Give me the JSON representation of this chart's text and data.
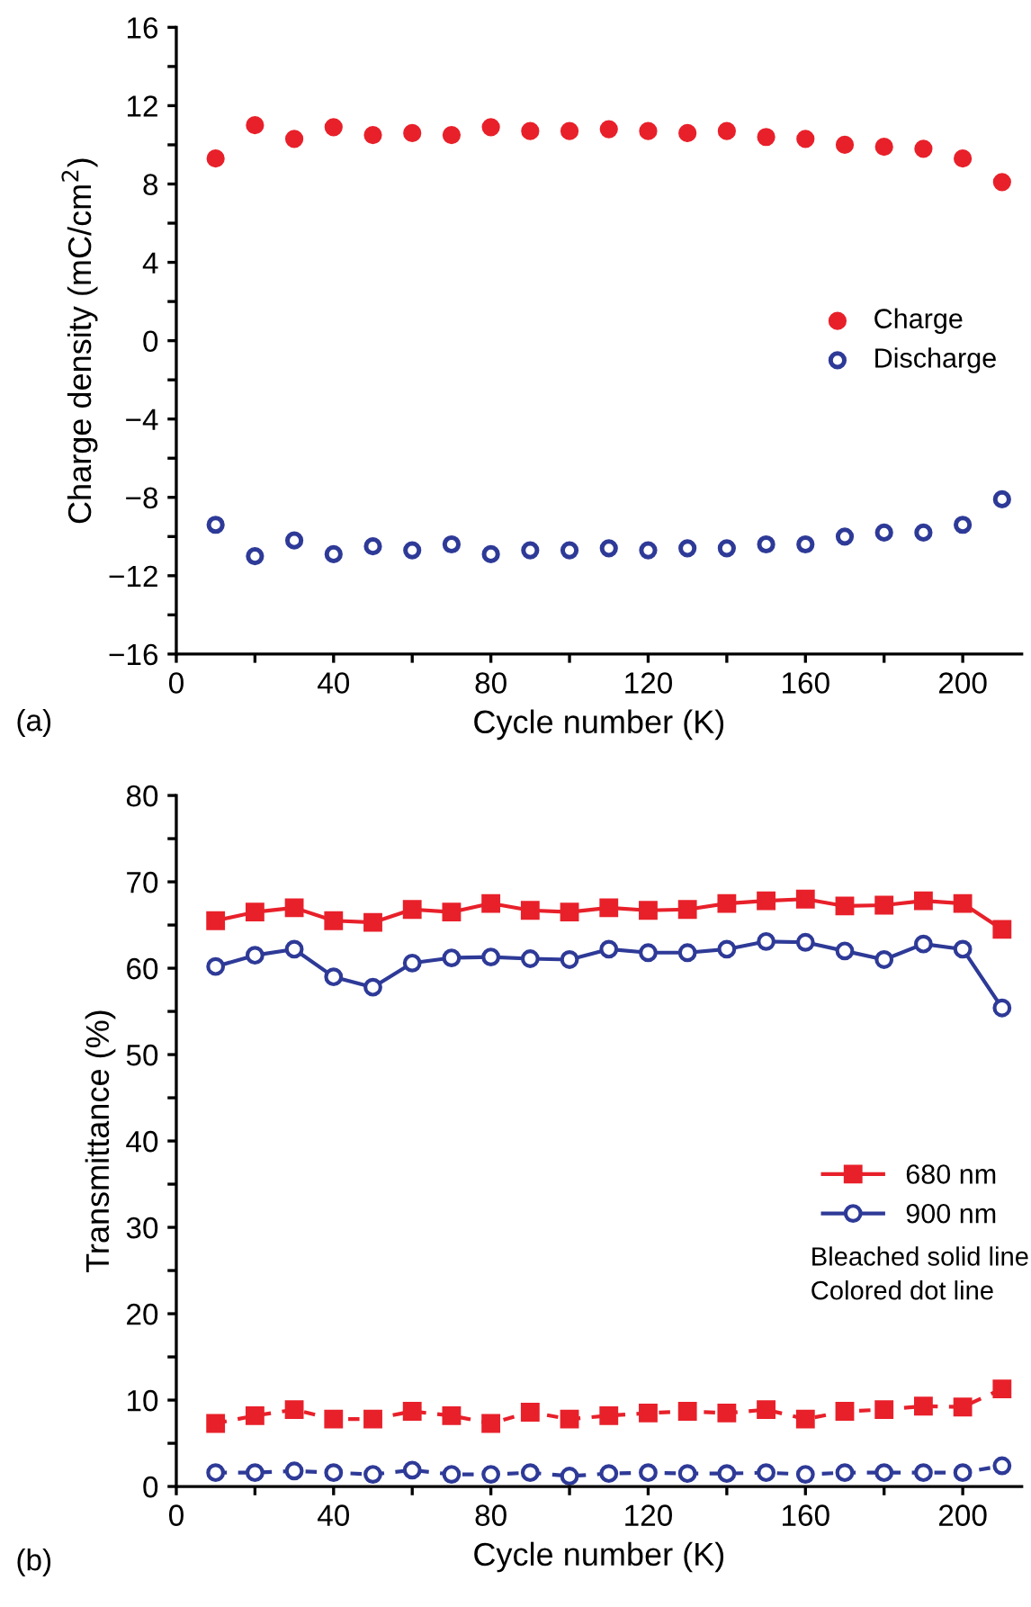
{
  "chart_data": [
    {
      "type": "scatter",
      "xlabel": "Cycle number (K)",
      "ylabel": "Charge density (mC/cm$^{2}$)",
      "annotations": [
        "(a)"
      ],
      "legend": "right",
      "marker": "circle",
      "grid": false,
      "x": [
        10,
        20,
        30,
        40,
        50,
        60,
        70,
        80,
        90,
        100,
        110,
        120,
        130,
        140,
        150,
        160,
        170,
        180,
        190,
        200,
        210
      ],
      "xlim": [
        0,
        215
      ],
      "xticks": [
        0,
        {
          "value": 20,
          "label": null
        },
        40,
        {
          "value": 60,
          "label": null
        },
        80,
        {
          "value": 100,
          "label": null
        },
        120,
        {
          "value": 140,
          "label": null
        },
        160,
        {
          "value": 180,
          "label": null
        },
        200
      ],
      "ylim": [
        -16,
        16
      ],
      "yticks": [
        {
          "value": -16,
          "label": "−16"
        },
        {
          "value": -14,
          "label": null
        },
        {
          "value": -12,
          "label": "−12"
        },
        {
          "value": -10,
          "label": null
        },
        {
          "value": -8,
          "label": "−8"
        },
        {
          "value": -6,
          "label": null
        },
        {
          "value": -4,
          "label": "−4"
        },
        {
          "value": -2,
          "label": null
        },
        0,
        {
          "value": 2,
          "label": null
        },
        4,
        {
          "value": 6,
          "label": null
        },
        8,
        {
          "value": 10,
          "label": null
        },
        12,
        {
          "value": 14,
          "label": null
        },
        16
      ],
      "series": [
        {
          "name": "Charge",
          "color": "#e8202a",
          "values": [
            9.3,
            11.0,
            10.3,
            10.9,
            10.5,
            10.6,
            10.5,
            10.9,
            10.7,
            10.7,
            10.8,
            10.7,
            10.6,
            10.7,
            10.4,
            10.3,
            10.0,
            9.9,
            9.8,
            9.3,
            8.1
          ]
        },
        {
          "name": "Discharge",
          "color": "#2e3a97",
          "values": [
            -9.4,
            -11.0,
            -10.2,
            -10.9,
            -10.5,
            -10.7,
            -10.4,
            -10.9,
            -10.7,
            -10.7,
            -10.6,
            -10.7,
            -10.6,
            -10.6,
            -10.4,
            -10.4,
            -10.0,
            -9.8,
            -9.8,
            -9.4,
            -8.1
          ]
        }
      ]
    },
    {
      "type": "line",
      "xlabel": "Cycle number (K)",
      "ylabel": "Transmittance (%)",
      "annotations": [
        "(b)",
        "Bleached solid line\nColored dot line"
      ],
      "legend": "right",
      "grid": false,
      "x": [
        10,
        20,
        30,
        40,
        50,
        60,
        70,
        80,
        90,
        100,
        110,
        120,
        130,
        140,
        150,
        160,
        170,
        180,
        190,
        200,
        210
      ],
      "xlim": [
        0,
        215
      ],
      "xticks": [
        0,
        {
          "value": 20,
          "label": null
        },
        40,
        {
          "value": 60,
          "label": null
        },
        80,
        {
          "value": 100,
          "label": null
        },
        120,
        {
          "value": 140,
          "label": null
        },
        160,
        {
          "value": 180,
          "label": null
        },
        200
      ],
      "ylim": [
        0,
        80
      ],
      "yticks": [
        0,
        {
          "value": 5,
          "label": null
        },
        10,
        {
          "value": 15,
          "label": null
        },
        20,
        {
          "value": 25,
          "label": null
        },
        30,
        {
          "value": 35,
          "label": null
        },
        40,
        {
          "value": 45,
          "label": null
        },
        50,
        {
          "value": 55,
          "label": null
        },
        60,
        {
          "value": 65,
          "label": null
        },
        70,
        {
          "value": 75,
          "label": null
        },
        80
      ],
      "series": [
        {
          "name": "680 nm",
          "color": "#e8202a",
          "marker": "square",
          "line_style": "solid",
          "values": [
            65.5,
            66.5,
            67.0,
            65.5,
            65.3,
            66.8,
            66.5,
            67.5,
            66.7,
            66.5,
            67.0,
            66.7,
            66.8,
            67.5,
            67.8,
            68.0,
            67.2,
            67.3,
            67.8,
            67.5,
            64.5
          ]
        },
        {
          "name": "900 nm",
          "color": "#2e3a97",
          "marker": "circle",
          "line_style": "solid",
          "values": [
            60.2,
            61.5,
            62.2,
            59.0,
            57.8,
            60.6,
            61.2,
            61.3,
            61.1,
            61.0,
            62.2,
            61.8,
            61.8,
            62.2,
            63.1,
            63.0,
            62.0,
            61.0,
            62.8,
            62.2,
            55.4
          ]
        },
        {
          "color": "#e8202a",
          "marker": "square",
          "line_style": "dashed",
          "values": [
            7.3,
            8.2,
            8.9,
            7.8,
            7.8,
            8.7,
            8.2,
            7.3,
            8.6,
            7.8,
            8.2,
            8.5,
            8.7,
            8.5,
            8.9,
            7.8,
            8.7,
            8.9,
            9.3,
            9.2,
            11.3
          ]
        },
        {
          "color": "#2e3a97",
          "marker": "circle",
          "line_style": "dashed",
          "values": [
            1.6,
            1.6,
            1.8,
            1.6,
            1.4,
            1.9,
            1.4,
            1.4,
            1.6,
            1.2,
            1.5,
            1.6,
            1.5,
            1.5,
            1.6,
            1.4,
            1.6,
            1.6,
            1.6,
            1.6,
            2.4
          ]
        }
      ]
    }
  ]
}
